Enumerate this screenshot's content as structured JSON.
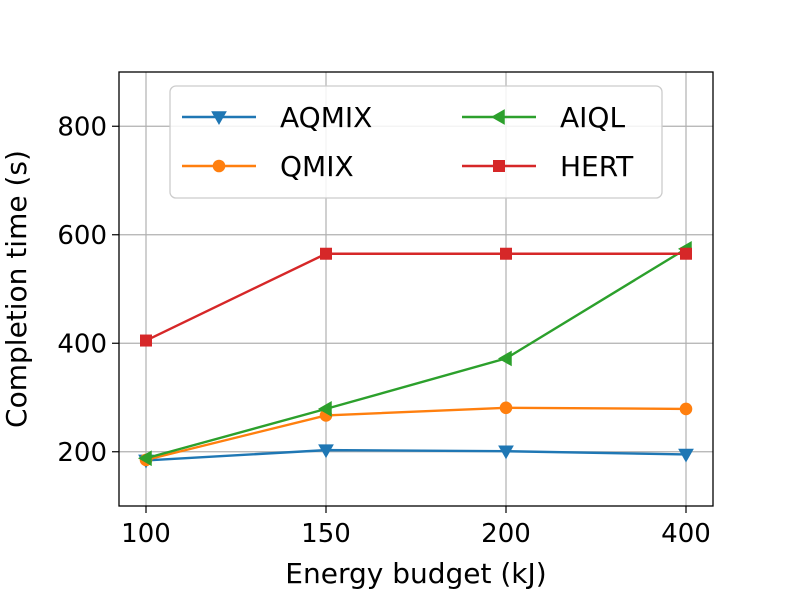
{
  "chart_data": {
    "type": "line",
    "title": "",
    "xlabel": "Energy budget (kJ)",
    "ylabel": "Completion time (s)",
    "categories": [
      "100",
      "150",
      "200",
      "400"
    ],
    "ylim": [
      100,
      900
    ],
    "yticks": [
      200,
      400,
      600,
      800
    ],
    "grid": true,
    "legend_position": "top",
    "series": [
      {
        "name": "AQMIX",
        "color": "#1f77b4",
        "marker": "triangle-down",
        "values": [
          184,
          203,
          201,
          195
        ]
      },
      {
        "name": "QMIX",
        "color": "#ff7f0e",
        "marker": "circle",
        "values": [
          185,
          267,
          281,
          279
        ]
      },
      {
        "name": "AIQL",
        "color": "#2ca02c",
        "marker": "triangle-left",
        "values": [
          188,
          279,
          372,
          574
        ]
      },
      {
        "name": "HERT",
        "color": "#d62728",
        "marker": "square",
        "values": [
          405,
          565,
          565,
          565
        ]
      }
    ]
  }
}
